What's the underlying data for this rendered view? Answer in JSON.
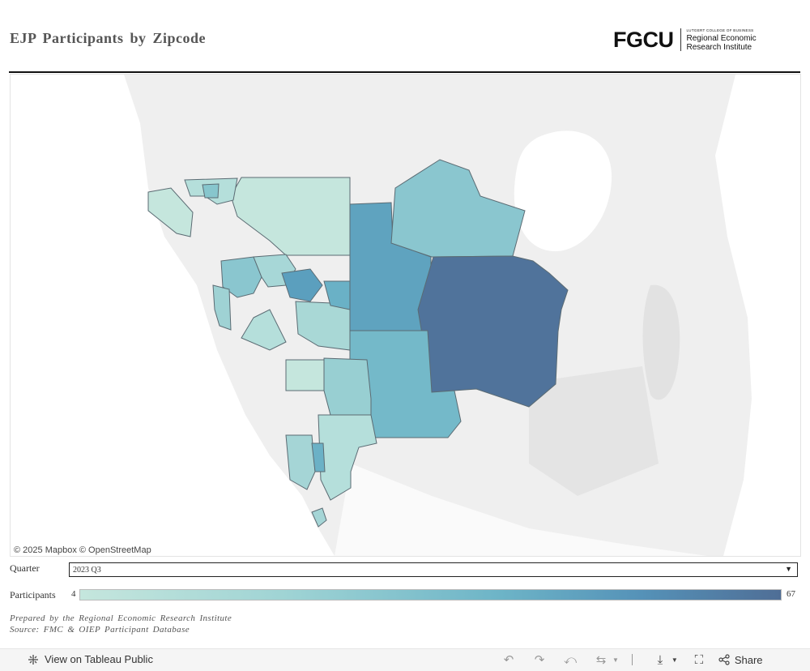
{
  "header": {
    "title": "EJP Participants by Zipcode",
    "logo": {
      "mark": "FGCU",
      "small": "LUTGERT COLLEGE OF BUSINESS",
      "line1": "Regional Economic",
      "line2": "Research Institute"
    }
  },
  "map": {
    "attribution": "© 2025 Mapbox  © OpenStreetMap",
    "color_scale": [
      "#c5e6dd",
      "#9ed3d4",
      "#6db4c7",
      "#5592b8",
      "#4f6e96"
    ]
  },
  "filters": {
    "quarter_label": "Quarter",
    "quarter_value": "2023 Q3",
    "participants_label": "Participants",
    "participants_min": "4",
    "participants_max": "67"
  },
  "footer": {
    "prepared_by": "Prepared by the Regional Economic Research Institute",
    "source": "Source: FMC & OIEP Participant Database"
  },
  "toolbar": {
    "view_label": "View on Tableau Public",
    "share_label": "Share"
  }
}
